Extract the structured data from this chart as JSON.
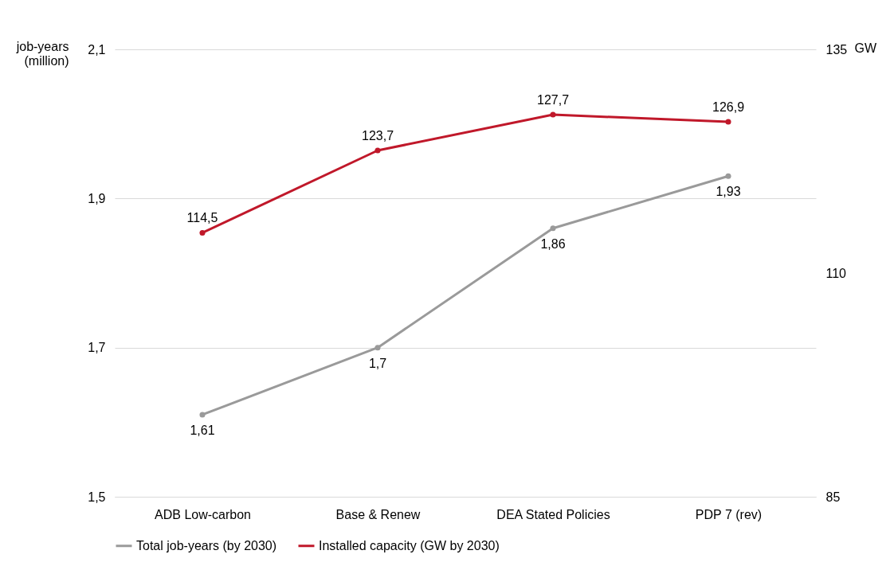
{
  "chart_data": {
    "type": "line",
    "ylabel": "job-years (million)",
    "y2label": "GW",
    "categories": [
      "ADB Low-carbon",
      "Base & Renew",
      "DEA Stated Policies",
      "PDP 7 (rev)"
    ],
    "series": [
      {
        "name": "Total job-years (by 2030)",
        "color": "#9a9a9a",
        "values": [
          1.61,
          1.7,
          1.86,
          1.93
        ],
        "value_labels": [
          "1,61",
          "1,7",
          "1,86",
          "1,93"
        ]
      },
      {
        "name": "Installed capacity (GW by 2030)",
        "color": "#c0182a",
        "axis": "y2",
        "values": [
          114.5,
          123.7,
          127.7,
          126.9
        ],
        "value_labels": [
          "114,5",
          "123,7",
          "127,7",
          "126,9"
        ]
      }
    ],
    "ylim": [
      1.5,
      2.1
    ],
    "yticks": [
      {
        "value": 1.5,
        "label": "1,5"
      },
      {
        "value": 1.7,
        "label": "1,7"
      },
      {
        "value": 1.9,
        "label": "1,9"
      },
      {
        "value": 2.1,
        "label": "2,1"
      }
    ],
    "y2lim": [
      85,
      135
    ],
    "y2ticks": [
      85,
      110,
      135
    ],
    "grid": "y",
    "legend": "bottom",
    "marker": "circle"
  }
}
